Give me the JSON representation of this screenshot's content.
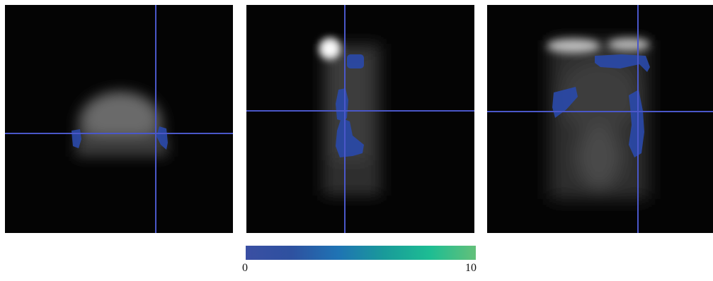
{
  "colorbar": {
    "min_label": "0",
    "max_label": "10",
    "colors": [
      "#3a4fa3",
      "#2e51a0",
      "#1f73b4",
      "#199a9a",
      "#1dbd93",
      "#63c07a"
    ]
  },
  "crosshair_color": "#4a57c9",
  "overlay_color": "#2a49a8"
}
